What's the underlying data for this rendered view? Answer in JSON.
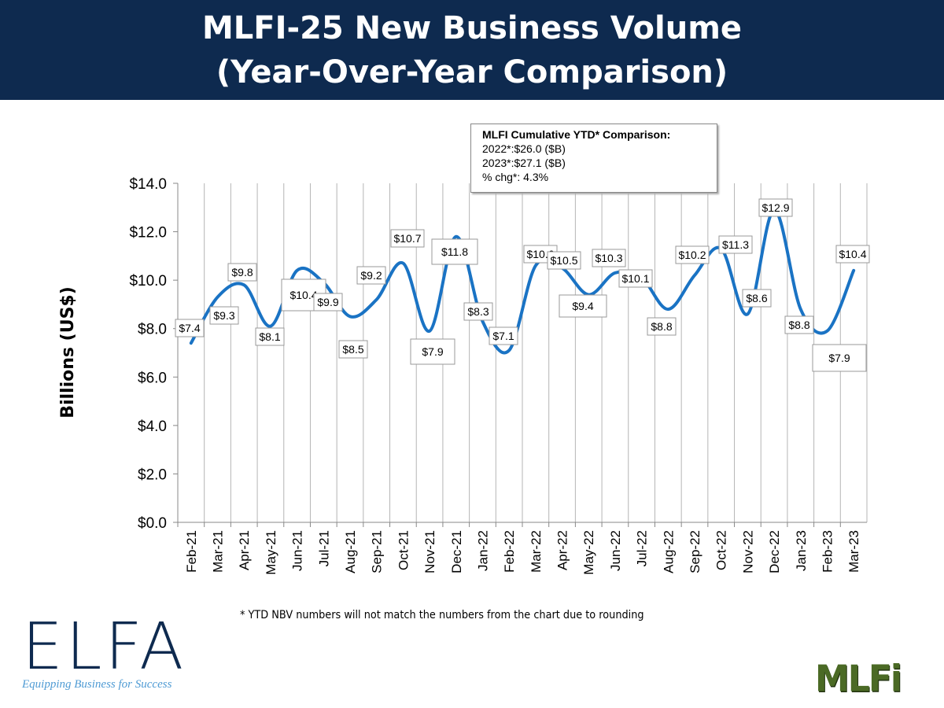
{
  "header": {
    "title_line1": "MLFI-25 New Business Volume",
    "title_line2": "(Year-Over-Year Comparison)"
  },
  "ytd_box": {
    "heading": "MLFI Cumulative YTD* Comparison:",
    "line1": "2022*:$26.0 ($B)",
    "line2": "2023*:$27.1 ($B)",
    "line3": "% chg*:  4.3%"
  },
  "footnote": "*  YTD NBV numbers will not match the numbers from the chart due to rounding",
  "logos": {
    "elfa": "ELFA",
    "elfa_tagline": "Equipping Business for Success",
    "mlfi": "MLFi"
  },
  "chart_data": {
    "type": "line",
    "title": "",
    "xlabel": "",
    "ylabel": "Billions (US$)",
    "ylim": [
      0,
      14
    ],
    "yticks": [
      "$0.0",
      "$2.0",
      "$4.0",
      "$6.0",
      "$8.0",
      "$10.0",
      "$12.0",
      "$14.0"
    ],
    "grid": "vertical",
    "smooth": true,
    "color": "#1a73c4",
    "categories": [
      "Feb-21",
      "Mar-21",
      "Apr-21",
      "May-21",
      "Jun-21",
      "Jul-21",
      "Aug-21",
      "Sep-21",
      "Oct-21",
      "Nov-21",
      "Dec-21",
      "Jan-22",
      "Feb-22",
      "Mar-22",
      "Apr-22",
      "May-22",
      "Jun-22",
      "Jul-22",
      "Aug-22",
      "Sep-22",
      "Oct-22",
      "Nov-22",
      "Dec-22",
      "Jan-23",
      "Feb-23",
      "Mar-23"
    ],
    "values": [
      7.4,
      9.3,
      9.8,
      8.1,
      10.4,
      9.9,
      8.5,
      9.2,
      10.7,
      7.9,
      11.8,
      8.3,
      7.1,
      10.6,
      10.5,
      9.4,
      10.3,
      10.1,
      8.8,
      10.2,
      11.3,
      8.6,
      12.9,
      8.8,
      7.9,
      10.4
    ],
    "data_labels": [
      "$7.4",
      "$9.3",
      "$9.8",
      "$8.1",
      "$10.4",
      "$9.9",
      "$8.5",
      "$9.2",
      "$10.7",
      "$7.9",
      "$11.8",
      "$8.3",
      "$7.1",
      "$10.6",
      "$10.5",
      "$9.4",
      "$10.3",
      "$10.1",
      "$8.8",
      "$10.2",
      "$11.3",
      "$8.6",
      "$12.9",
      "$8.8",
      "$7.9",
      "$10.4"
    ]
  }
}
